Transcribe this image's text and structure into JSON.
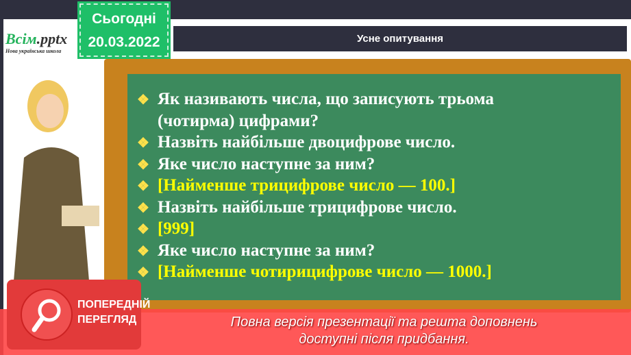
{
  "logo": {
    "brand": "Всім",
    "ext": ".pptx",
    "subtitle": "Нова українська школа"
  },
  "date": {
    "label": "Сьогодні",
    "value": "20.03.2022"
  },
  "title": "Усне опитування",
  "items": [
    {
      "text": "Як називають числа, що записують трьома",
      "highlight": false,
      "bullet": true
    },
    {
      "text": "(чотирма) цифрами?",
      "highlight": false,
      "bullet": false
    },
    {
      "text": "Назвіть найбільше двоцифрове число.",
      "highlight": false,
      "bullet": true
    },
    {
      "text": "Яке число наступне за ним?",
      "highlight": false,
      "bullet": true
    },
    {
      "text": "[Найменше трицифрове число — 100.]",
      "highlight": true,
      "bullet": true
    },
    {
      "text": "Назвіть найбільше трицифрове число.",
      "highlight": false,
      "bullet": true
    },
    {
      "text": "[999]",
      "highlight": true,
      "bullet": true
    },
    {
      "text": "Яке число наступне за ним?",
      "highlight": false,
      "bullet": true
    },
    {
      "text": "[Найменше чотирицифрове число — 1000.]",
      "highlight": true,
      "bullet": true
    }
  ],
  "bullet_glyph": "❖",
  "preview": {
    "line1": "ПОПЕРЕДНІЙ",
    "line2": "ПЕРЕГЛЯД",
    "notice1": "Повна версія презентації та решта доповнень",
    "notice2": "доступні після придбання."
  },
  "colors": {
    "board": "#3c8a5d",
    "frame": "#c8821e",
    "accent": "#1fbf68",
    "banner": "#ff4646",
    "highlight": "#ffff00"
  }
}
